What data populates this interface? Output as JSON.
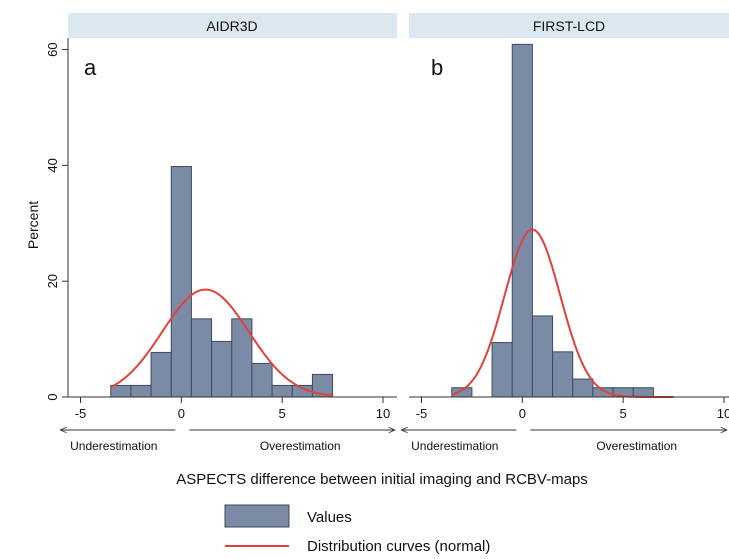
{
  "chart_data": {
    "type": "histogram",
    "ylabel": "Percent",
    "xlabel": "ASPECTS difference between initial imaging and RCBV-maps",
    "ylim": [
      0,
      62
    ],
    "yticks": [
      "0",
      "20",
      "40",
      "60"
    ],
    "xlim": [
      -6,
      10
    ],
    "xticks": [
      "-5",
      "0",
      "5",
      "10"
    ],
    "bin_width": 1,
    "legend": {
      "placement": "bottom",
      "values_label": "Values",
      "curve_label": "Distribution curves (normal)"
    },
    "colors": {
      "bars": "#7B8BA5",
      "bar_edge": "#3E4A5E",
      "curve": "#E0413A",
      "header": "#DCE8EF"
    },
    "panels": [
      {
        "title": "AIDR3D",
        "letter": "a",
        "bins": [
          {
            "x": -3,
            "value": 2
          },
          {
            "x": -2,
            "value": 2
          },
          {
            "x": -1,
            "value": 7.7
          },
          {
            "x": 0,
            "value": 39.8
          },
          {
            "x": 1,
            "value": 13.5
          },
          {
            "x": 2,
            "value": 9.6
          },
          {
            "x": 3,
            "value": 13.5
          },
          {
            "x": 4,
            "value": 5.8
          },
          {
            "x": 5,
            "value": 2
          },
          {
            "x": 6,
            "value": 2
          },
          {
            "x": 7,
            "value": 3.9
          }
        ],
        "normal_curve": {
          "mean": 1.2,
          "sd": 2.15,
          "x_range": [
            -3.5,
            7.5
          ]
        },
        "underestimation_label": "Underestimation",
        "overestimation_label": "Overestimation"
      },
      {
        "title": "FIRST-LCD",
        "letter": "b",
        "bins": [
          {
            "x": -3,
            "value": 1.6
          },
          {
            "x": -1,
            "value": 9.4
          },
          {
            "x": 0,
            "value": 60.9
          },
          {
            "x": 1,
            "value": 14
          },
          {
            "x": 2,
            "value": 7.8
          },
          {
            "x": 3,
            "value": 3.1
          },
          {
            "x": 4,
            "value": 1.6
          },
          {
            "x": 5,
            "value": 1.6
          },
          {
            "x": 6,
            "value": 1.6
          }
        ],
        "normal_curve": {
          "mean": 0.5,
          "sd": 1.38,
          "x_range": [
            -3.5,
            7.5
          ]
        },
        "underestimation_label": "Underestimation",
        "overestimation_label": "Overestimation"
      }
    ]
  }
}
